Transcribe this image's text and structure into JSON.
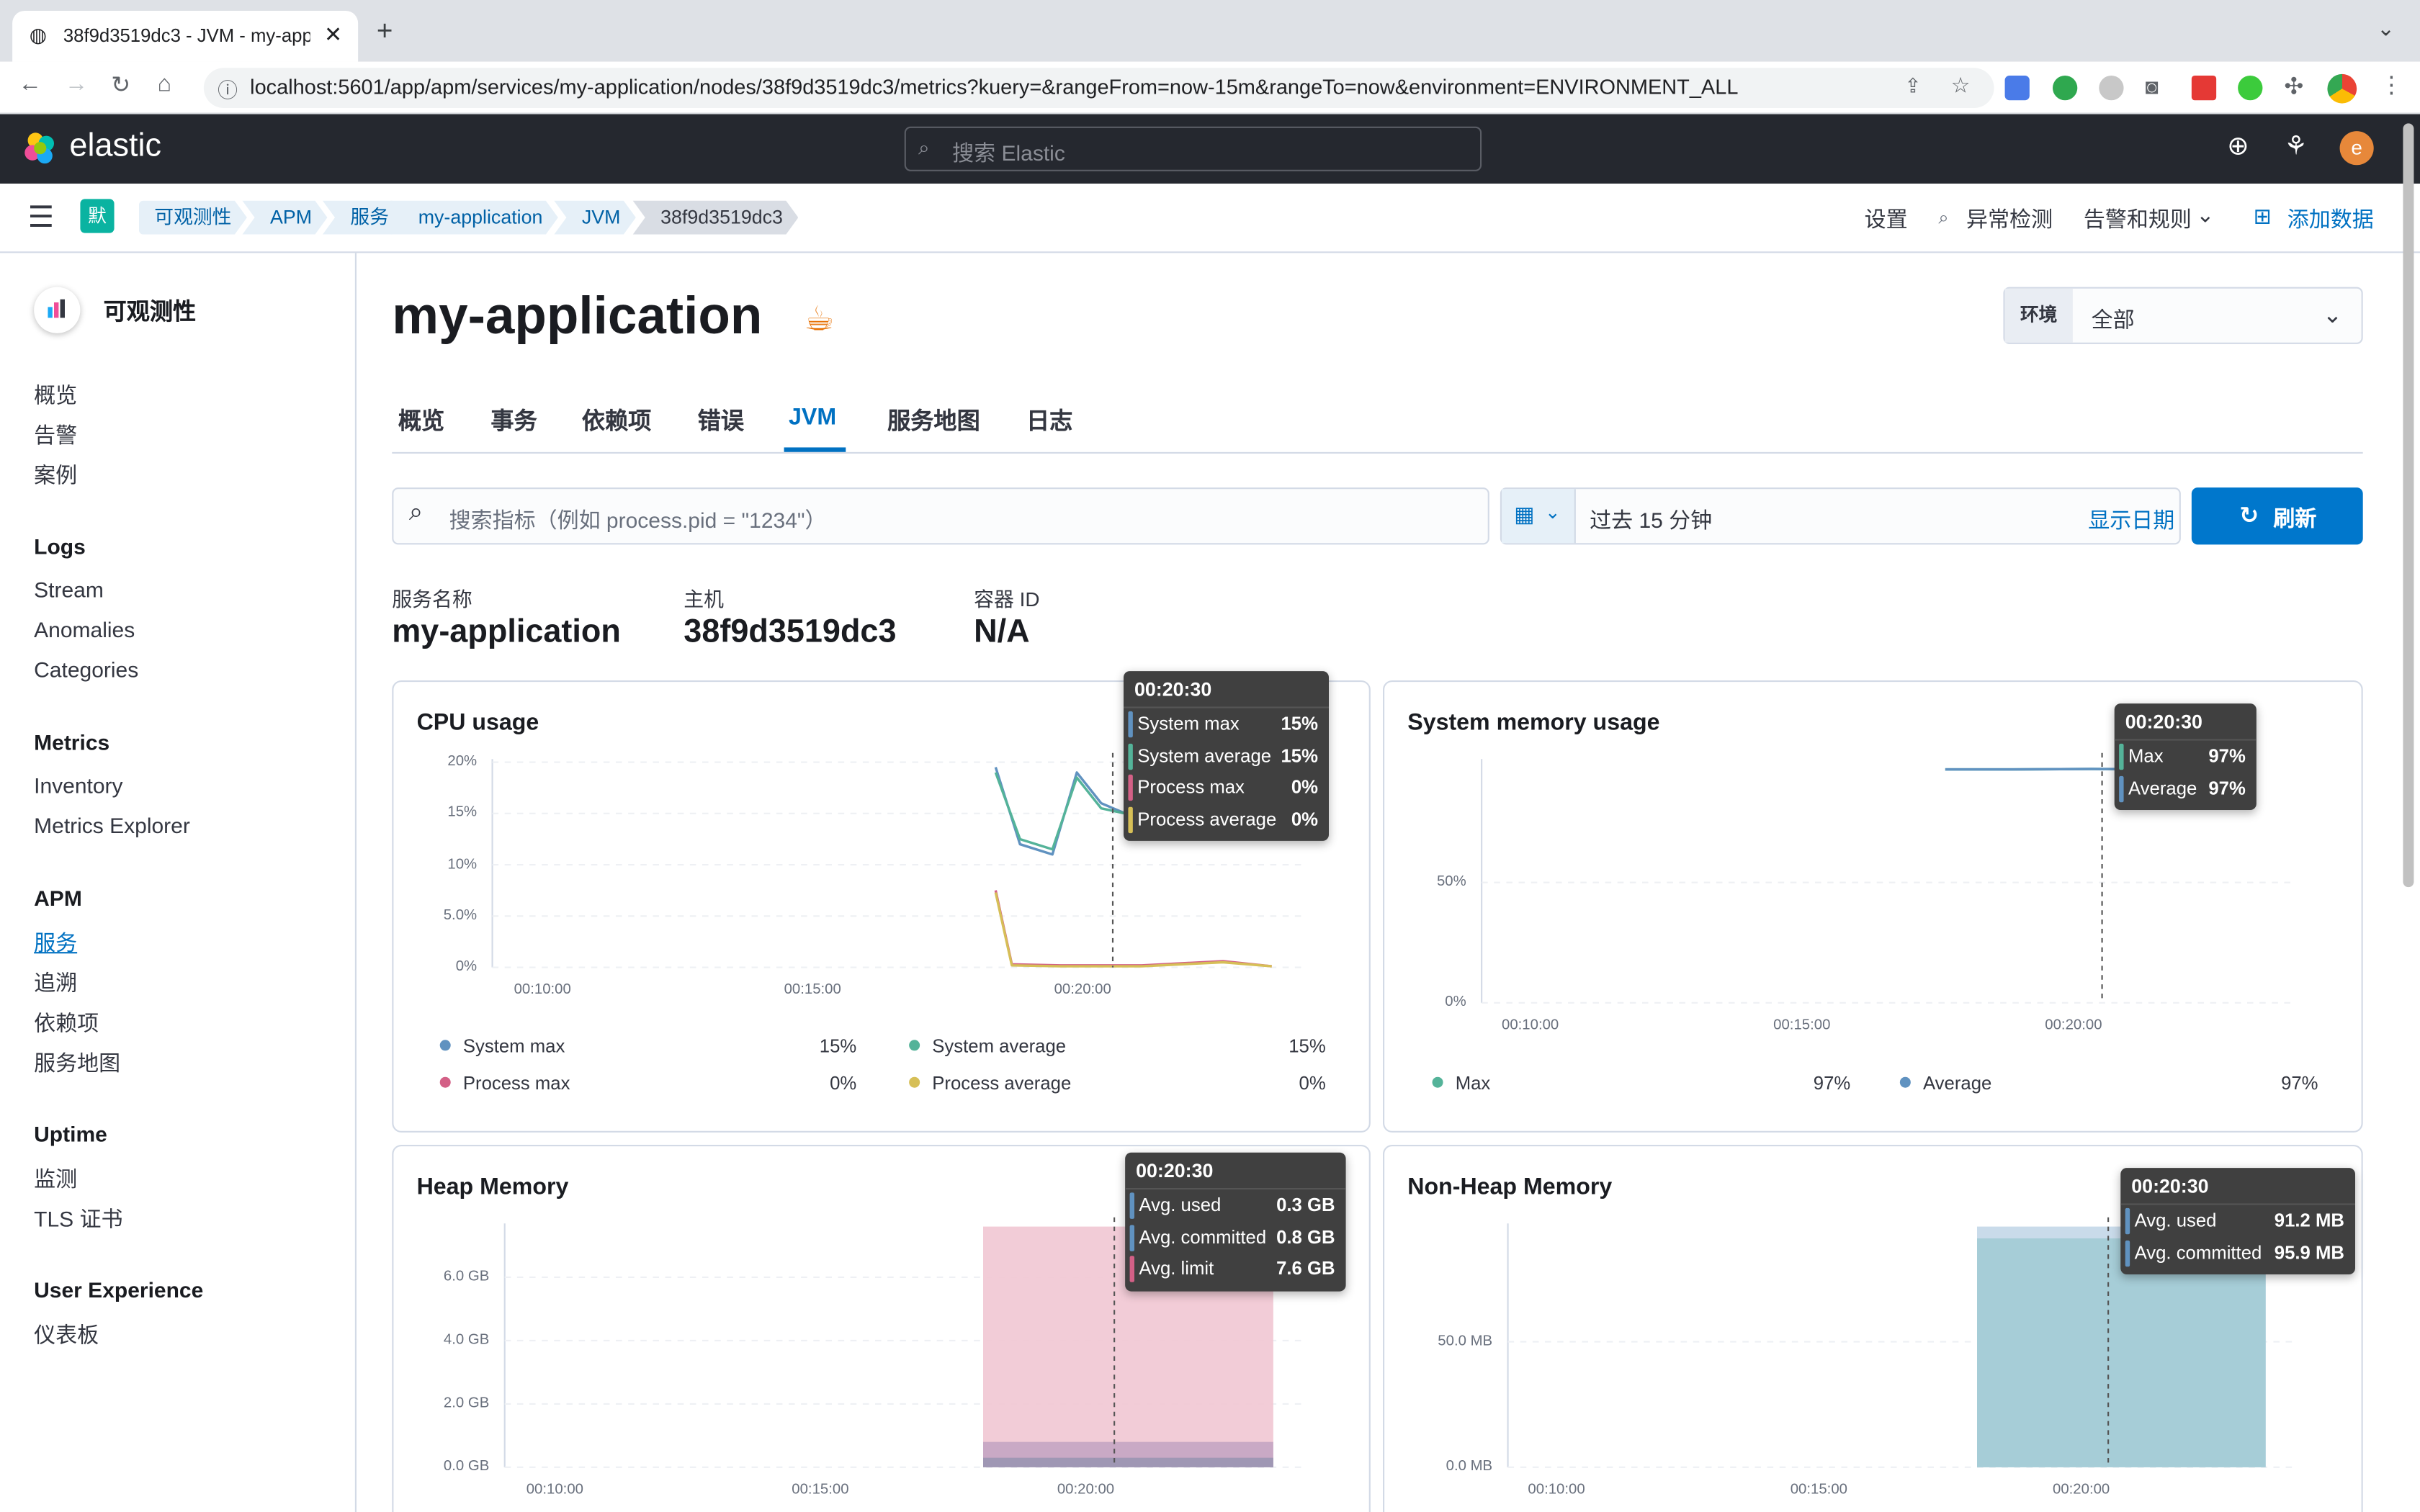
{
  "browser": {
    "tab_title": "38f9d3519dc3 - JVM - my-app",
    "url": "localhost:5601/app/apm/services/my-application/nodes/38f9d3519dc3/metrics?kuery=&rangeFrom=now-15m&rangeTo=now&environment=ENVIRONMENT_ALL"
  },
  "header": {
    "brand": "elastic",
    "search_placeholder": "搜索 Elastic",
    "avatar_letter": "e"
  },
  "breadcrumb": {
    "space_badge": "默",
    "items": [
      "可观测性",
      "APM",
      "服务",
      "my-application",
      "JVM",
      "38f9d3519dc3"
    ],
    "links": {
      "settings": "设置",
      "anomaly": "异常检测",
      "alerts": "告警和规则",
      "add_data": "添加数据"
    }
  },
  "sidebar": {
    "title": "可观测性",
    "top_items": [
      "概览",
      "告警",
      "案例"
    ],
    "sections": [
      {
        "heading": "Logs",
        "items": [
          "Stream",
          "Anomalies",
          "Categories"
        ]
      },
      {
        "heading": "Metrics",
        "items": [
          "Inventory",
          "Metrics Explorer"
        ]
      },
      {
        "heading": "APM",
        "items": [
          "服务",
          "追溯",
          "依赖项",
          "服务地图"
        ]
      },
      {
        "heading": "Uptime",
        "items": [
          "监测",
          "TLS 证书"
        ]
      },
      {
        "heading": "User Experience",
        "items": [
          "仪表板"
        ]
      }
    ],
    "active": "服务"
  },
  "page": {
    "title": "my-application",
    "env_label": "环境",
    "env_value": "全部",
    "tabs": [
      "概览",
      "事务",
      "依赖项",
      "错误",
      "JVM",
      "服务地图",
      "日志"
    ],
    "active_tab": "JVM",
    "search_placeholder": "搜索指标（例如 process.pid = \"1234\"）",
    "time_range": "过去 15 分钟",
    "show_dates": "显示日期",
    "refresh": "刷新",
    "meta": [
      {
        "label": "服务名称",
        "value": "my-application"
      },
      {
        "label": "主机",
        "value": "38f9d3519dc3"
      },
      {
        "label": "容器 ID",
        "value": "N/A"
      }
    ]
  },
  "colors": {
    "system_max": "#6092c0",
    "system_avg": "#54b399",
    "process_max": "#d36086",
    "process_avg": "#d6bf57",
    "accent": "#0077cc",
    "heap_fill": "#f1c7d3",
    "nonheap_fill": "#a6cdd7"
  },
  "chart_data": [
    {
      "type": "line",
      "title": "CPU usage",
      "x_ticks": [
        "00:10:00",
        "00:15:00",
        "00:20:00"
      ],
      "y_ticks": [
        "20%",
        "15%",
        "10%",
        "5.0%",
        "0%"
      ],
      "ylim": [
        0,
        20
      ],
      "series": [
        {
          "name": "System max",
          "x": [
            0.62,
            0.65,
            0.69,
            0.72,
            0.75,
            0.78
          ],
          "values": [
            19.5,
            12,
            11,
            19,
            16,
            15
          ]
        },
        {
          "name": "System average",
          "x": [
            0.62,
            0.65,
            0.69,
            0.72,
            0.75,
            0.78
          ],
          "values": [
            19,
            12.5,
            11.5,
            18.5,
            15.5,
            15
          ]
        },
        {
          "name": "Process max",
          "x": [
            0.62,
            0.64,
            0.7,
            0.8,
            0.9,
            0.96
          ],
          "values": [
            7.5,
            0.3,
            0.2,
            0.2,
            0.6,
            0.1
          ]
        },
        {
          "name": "Process average",
          "x": [
            0.62,
            0.64,
            0.7,
            0.8,
            0.9,
            0.96
          ],
          "values": [
            7.3,
            0.2,
            0.1,
            0.1,
            0.5,
            0.1
          ]
        }
      ],
      "legend": [
        {
          "name": "System max",
          "value": "15%"
        },
        {
          "name": "System average",
          "value": "15%"
        },
        {
          "name": "Process max",
          "value": "0%"
        },
        {
          "name": "Process average",
          "value": "0%"
        }
      ],
      "tooltip": {
        "time": "00:20:30",
        "rows": [
          {
            "name": "System max",
            "value": "15%"
          },
          {
            "name": "System average",
            "value": "15%"
          },
          {
            "name": "Process max",
            "value": "0%"
          },
          {
            "name": "Process average",
            "value": "0%"
          }
        ]
      }
    },
    {
      "type": "line",
      "title": "System memory usage",
      "x_ticks": [
        "00:10:00",
        "00:15:00",
        "00:20:00"
      ],
      "y_ticks": [
        "50%",
        "0%"
      ],
      "ylim": [
        0,
        100
      ],
      "series": [
        {
          "name": "Max",
          "x": [
            0.57,
            0.65,
            0.75,
            0.85,
            0.93
          ],
          "values": [
            97,
            97,
            97.2,
            97,
            97
          ]
        },
        {
          "name": "Average",
          "x": [
            0.57,
            0.65,
            0.75,
            0.85,
            0.93
          ],
          "values": [
            97,
            97,
            97.2,
            97,
            97
          ]
        }
      ],
      "legend": [
        {
          "name": "Max",
          "value": "97%"
        },
        {
          "name": "Average",
          "value": "97%"
        }
      ],
      "tooltip": {
        "time": "00:20:30",
        "rows": [
          {
            "name": "Max",
            "value": "97%"
          },
          {
            "name": "Average",
            "value": "97%"
          }
        ]
      }
    },
    {
      "type": "area",
      "title": "Heap Memory",
      "x_ticks": [
        "00:10:00",
        "00:15:00",
        "00:20:00"
      ],
      "y_ticks": [
        "6.0 GB",
        "4.0 GB",
        "2.0 GB",
        "0.0 GB"
      ],
      "ylim": [
        0,
        7.6
      ],
      "series": [
        {
          "name": "Avg. limit",
          "values": [
            7.6
          ]
        },
        {
          "name": "Avg. committed",
          "values": [
            0.8
          ]
        },
        {
          "name": "Avg. used",
          "values": [
            0.3
          ]
        }
      ],
      "tooltip": {
        "time": "00:20:30",
        "rows": [
          {
            "name": "Avg. used",
            "value": "0.3 GB"
          },
          {
            "name": "Avg. committed",
            "value": "0.8 GB"
          },
          {
            "name": "Avg. limit",
            "value": "7.6 GB"
          }
        ]
      }
    },
    {
      "type": "area",
      "title": "Non-Heap Memory",
      "x_ticks": [
        "00:10:00",
        "00:15:00",
        "00:20:00"
      ],
      "y_ticks": [
        "50.0 MB",
        "0.0 MB"
      ],
      "ylim": [
        0,
        95.9
      ],
      "series": [
        {
          "name": "Avg. used",
          "values": [
            91.2
          ]
        },
        {
          "name": "Avg. committed",
          "values": [
            95.9
          ]
        }
      ],
      "tooltip": {
        "time": "00:20:30",
        "rows": [
          {
            "name": "Avg. used",
            "value": "91.2 MB"
          },
          {
            "name": "Avg. committed",
            "value": "95.9 MB"
          }
        ]
      }
    }
  ]
}
